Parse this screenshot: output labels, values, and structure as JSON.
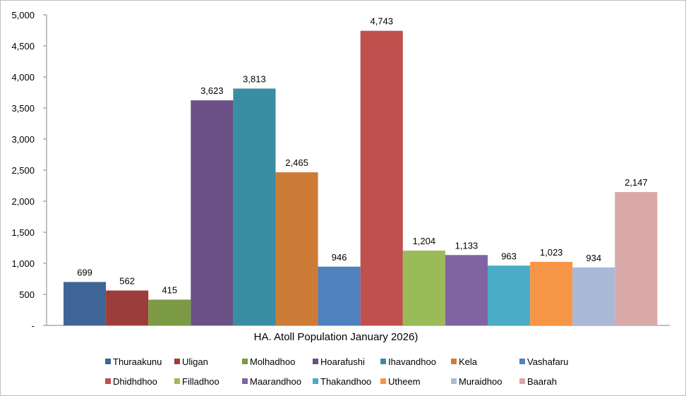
{
  "chart_data": {
    "type": "bar",
    "title": "",
    "xlabel": "HA. Atoll Population January 2026)",
    "ylabel": "",
    "ylim": [
      0,
      5000
    ],
    "yticks": [
      0,
      500,
      1000,
      1500,
      2000,
      2500,
      3000,
      3500,
      4000,
      4500,
      5000
    ],
    "ytick_labels": [
      "-",
      "500",
      "1,000",
      "1,500",
      "2,000",
      "2,500",
      "3,000",
      "3,500",
      "4,000",
      "4,500",
      "5,000"
    ],
    "grid": false,
    "legend_position": "bottom",
    "series": [
      {
        "name": "Thuraakunu",
        "value": 699,
        "label": "699",
        "color": "#3f6597"
      },
      {
        "name": "Uligan",
        "value": 562,
        "label": "562",
        "color": "#9c3d3a"
      },
      {
        "name": "Molhadhoo",
        "value": 415,
        "label": "415",
        "color": "#7b9a43"
      },
      {
        "name": "Hoarafushi",
        "value": 3623,
        "label": "3,623",
        "color": "#6a5085"
      },
      {
        "name": "Ihavandhoo",
        "value": 3813,
        "label": "3,813",
        "color": "#3a8ea3"
      },
      {
        "name": "Kela",
        "value": 2465,
        "label": "2,465",
        "color": "#cd7c37"
      },
      {
        "name": "Vashafaru",
        "value": 946,
        "label": "946",
        "color": "#4f81bd"
      },
      {
        "name": "Dhidhdhoo",
        "value": 4743,
        "label": "4,743",
        "color": "#c0504d"
      },
      {
        "name": "Filladhoo",
        "value": 1204,
        "label": "1,204",
        "color": "#9bbb59"
      },
      {
        "name": "Maarandhoo",
        "value": 1133,
        "label": "1,133",
        "color": "#8064a2"
      },
      {
        "name": "Thakandhoo",
        "value": 963,
        "label": "963",
        "color": "#4bacc6"
      },
      {
        "name": "Utheem",
        "value": 1023,
        "label": "1,023",
        "color": "#f79646"
      },
      {
        "name": "Muraidhoo",
        "value": 934,
        "label": "934",
        "color": "#a9b9d8"
      },
      {
        "name": "Baarah",
        "value": 2147,
        "label": "2,147",
        "color": "#d9a9a8"
      }
    ]
  }
}
